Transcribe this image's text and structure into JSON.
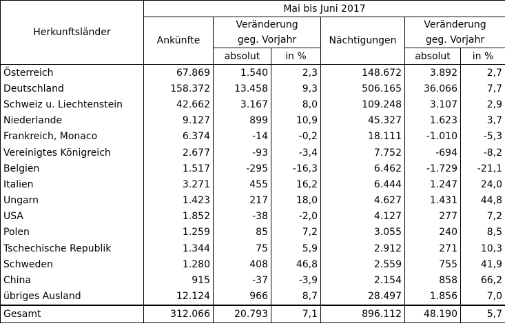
{
  "header": {
    "period": "Mai bis Juni 2017",
    "origin": "Herkunftsländer",
    "arrivals": "Ankünfte",
    "change_line1": "Veränderung",
    "change_line2": "geg. Vorjahr",
    "overnights": "Nächtigungen",
    "absolute": "absolut",
    "percent": "in %"
  },
  "rows": [
    {
      "country": "Österreich",
      "arrivals": "67.869",
      "arr_abs": "1.540",
      "arr_pct": "2,3",
      "nights": "148.672",
      "n_abs": "3.892",
      "n_pct": "2,7"
    },
    {
      "country": "Deutschland",
      "arrivals": "158.372",
      "arr_abs": "13.458",
      "arr_pct": "9,3",
      "nights": "506.165",
      "n_abs": "36.066",
      "n_pct": "7,7"
    },
    {
      "country": "Schweiz u. Liechtenstein",
      "arrivals": "42.662",
      "arr_abs": "3.167",
      "arr_pct": "8,0",
      "nights": "109.248",
      "n_abs": "3.107",
      "n_pct": "2,9"
    },
    {
      "country": "Niederlande",
      "arrivals": "9.127",
      "arr_abs": "899",
      "arr_pct": "10,9",
      "nights": "45.327",
      "n_abs": "1.623",
      "n_pct": "3,7"
    },
    {
      "country": "Frankreich, Monaco",
      "arrivals": "6.374",
      "arr_abs": "-14",
      "arr_pct": "-0,2",
      "nights": "18.111",
      "n_abs": "-1.010",
      "n_pct": "-5,3"
    },
    {
      "country": "Vereinigtes Königreich",
      "arrivals": "2.677",
      "arr_abs": "-93",
      "arr_pct": "-3,4",
      "nights": "7.752",
      "n_abs": "-694",
      "n_pct": "-8,2"
    },
    {
      "country": "Belgien",
      "arrivals": "1.517",
      "arr_abs": "-295",
      "arr_pct": "-16,3",
      "nights": "6.462",
      "n_abs": "-1.729",
      "n_pct": "-21,1"
    },
    {
      "country": "Italien",
      "arrivals": "3.271",
      "arr_abs": "455",
      "arr_pct": "16,2",
      "nights": "6.444",
      "n_abs": "1.247",
      "n_pct": "24,0"
    },
    {
      "country": "Ungarn",
      "arrivals": "1.423",
      "arr_abs": "217",
      "arr_pct": "18,0",
      "nights": "4.627",
      "n_abs": "1.431",
      "n_pct": "44,8"
    },
    {
      "country": "USA",
      "arrivals": "1.852",
      "arr_abs": "-38",
      "arr_pct": "-2,0",
      "nights": "4.127",
      "n_abs": "277",
      "n_pct": "7,2"
    },
    {
      "country": "Polen",
      "arrivals": "1.259",
      "arr_abs": "85",
      "arr_pct": "7,2",
      "nights": "3.055",
      "n_abs": "240",
      "n_pct": "8,5"
    },
    {
      "country": "Tschechische Republik",
      "arrivals": "1.344",
      "arr_abs": "75",
      "arr_pct": "5,9",
      "nights": "2.912",
      "n_abs": "271",
      "n_pct": "10,3"
    },
    {
      "country": "Schweden",
      "arrivals": "1.280",
      "arr_abs": "408",
      "arr_pct": "46,8",
      "nights": "2.559",
      "n_abs": "755",
      "n_pct": "41,9"
    },
    {
      "country": "China",
      "arrivals": "915",
      "arr_abs": "-37",
      "arr_pct": "-3,9",
      "nights": "2.154",
      "n_abs": "858",
      "n_pct": "66,2"
    },
    {
      "country": "übriges Ausland",
      "arrivals": "12.124",
      "arr_abs": "966",
      "arr_pct": "8,7",
      "nights": "28.497",
      "n_abs": "1.856",
      "n_pct": "7,0"
    }
  ],
  "total": {
    "country": "Gesamt",
    "arrivals": "312.066",
    "arr_abs": "20.793",
    "arr_pct": "7,1",
    "nights": "896.112",
    "n_abs": "48.190",
    "n_pct": "5,7"
  }
}
